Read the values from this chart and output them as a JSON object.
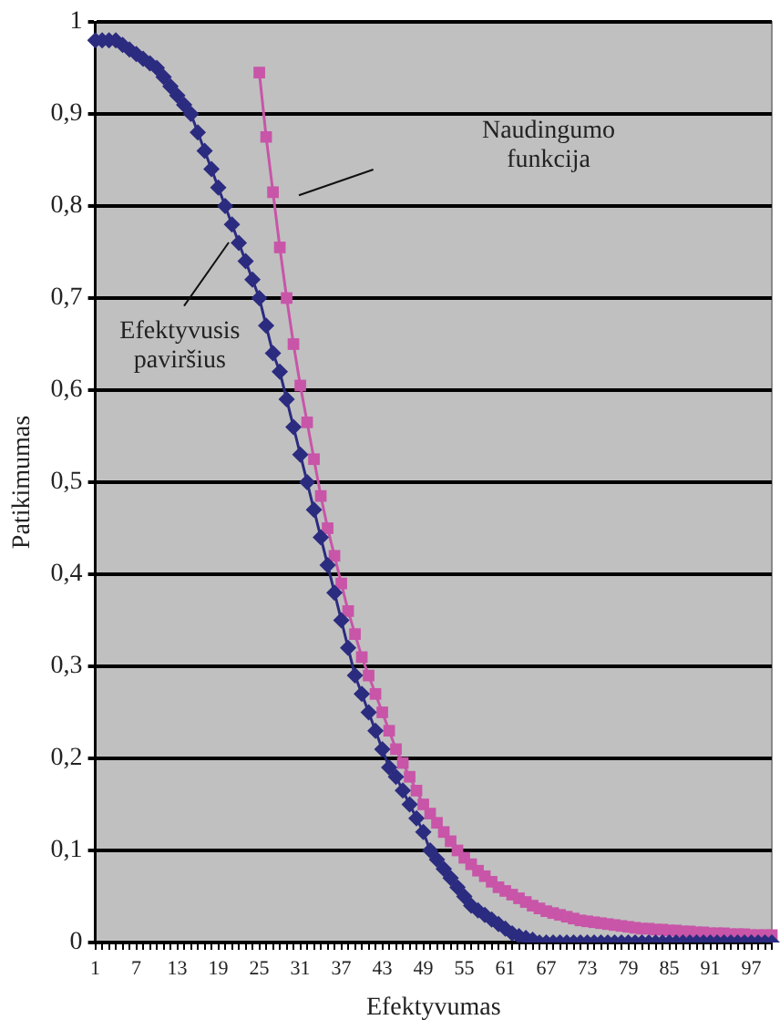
{
  "chart_data": {
    "type": "line",
    "xlabel": "Efektyvumas",
    "ylabel": "Patikimumas",
    "categories": [
      "1",
      null,
      null,
      null,
      null,
      null,
      "7",
      null,
      null,
      null,
      null,
      null,
      "13",
      null,
      null,
      null,
      null,
      null,
      "19",
      null,
      null,
      null,
      null,
      null,
      "25",
      null,
      null,
      null,
      null,
      null,
      "31",
      null,
      null,
      null,
      null,
      null,
      "37",
      null,
      null,
      null,
      null,
      null,
      "43",
      null,
      null,
      null,
      null,
      null,
      "49",
      null,
      null,
      null,
      null,
      null,
      "55",
      null,
      null,
      null,
      null,
      null,
      "61",
      null,
      null,
      null,
      null,
      null,
      "67",
      null,
      null,
      null,
      null,
      null,
      "73",
      null,
      null,
      null,
      null,
      null,
      "79",
      null,
      null,
      null,
      null,
      null,
      "85",
      null,
      null,
      null,
      null,
      null,
      "91",
      null,
      null,
      null,
      null,
      null,
      "97",
      null,
      null,
      null
    ],
    "series": [
      {
        "color": "#2b2b80",
        "marker": "diamond",
        "values": [
          0.98,
          0.98,
          0.98,
          0.98,
          0.975,
          0.97,
          0.965,
          0.96,
          0.955,
          0.95,
          0.94,
          0.93,
          0.92,
          0.91,
          0.9,
          0.88,
          0.86,
          0.84,
          0.82,
          0.8,
          0.78,
          0.76,
          0.74,
          0.72,
          0.7,
          0.67,
          0.64,
          0.62,
          0.59,
          0.56,
          0.53,
          0.5,
          0.47,
          0.44,
          0.41,
          0.38,
          0.35,
          0.32,
          0.29,
          0.27,
          0.25,
          0.23,
          0.21,
          0.19,
          0.18,
          0.165,
          0.15,
          0.135,
          0.12,
          0.1,
          0.09,
          0.08,
          0.07,
          0.06,
          0.05,
          0.04,
          0.035,
          0.03,
          0.025,
          0.02,
          0.015,
          0.01,
          0.007,
          0.005,
          0.003,
          0,
          0,
          0,
          0,
          0,
          0,
          0,
          0,
          0,
          0,
          0,
          0,
          0,
          0,
          0,
          0,
          0,
          0,
          0,
          0,
          0,
          0,
          0,
          0,
          0,
          0,
          0,
          0,
          0,
          0,
          0,
          0,
          0,
          0,
          0
        ]
      },
      {
        "color": "#c855a8",
        "marker": "square",
        "values": [
          null,
          null,
          null,
          null,
          null,
          null,
          null,
          null,
          null,
          null,
          null,
          null,
          null,
          null,
          null,
          null,
          null,
          null,
          null,
          null,
          null,
          null,
          null,
          null,
          0.945,
          0.875,
          0.815,
          0.755,
          0.7,
          0.65,
          0.605,
          0.565,
          0.525,
          0.485,
          0.45,
          0.42,
          0.39,
          0.36,
          0.335,
          0.31,
          0.29,
          0.27,
          0.25,
          0.23,
          0.21,
          0.195,
          0.18,
          0.165,
          0.15,
          0.14,
          0.13,
          0.12,
          0.11,
          0.1,
          0.092,
          0.085,
          0.078,
          0.072,
          0.066,
          0.06,
          0.056,
          0.052,
          0.048,
          0.044,
          0.04,
          0.037,
          0.034,
          0.032,
          0.03,
          0.028,
          0.026,
          0.024,
          0.023,
          0.022,
          0.021,
          0.02,
          0.019,
          0.018,
          0.017,
          0.016,
          0.015,
          0.015,
          0.014,
          0.014,
          0.013,
          0.013,
          0.012,
          0.012,
          0.011,
          0.011,
          0.01,
          0.01,
          0.01,
          0.009,
          0.009,
          0.009,
          0.008,
          0.008,
          0.008,
          0.008
        ]
      }
    ],
    "ylim": [
      0,
      1
    ],
    "yticks": [
      0,
      {
        "value": 0.1,
        "label": "0,1"
      },
      {
        "value": 0.2,
        "label": "0,2"
      },
      {
        "value": 0.3,
        "label": "0,3"
      },
      {
        "value": 0.4,
        "label": "0,4"
      },
      {
        "value": 0.5,
        "label": "0,5"
      },
      {
        "value": 0.6,
        "label": "0,6"
      },
      {
        "value": 0.7,
        "label": "0,7"
      },
      {
        "value": 0.8,
        "label": "0,8"
      },
      {
        "value": 0.9,
        "label": "0,9"
      },
      1
    ],
    "grid": "y",
    "legend": false,
    "line_style": "solid",
    "annotations": [
      "Naudingumo funkcija",
      "Efektyvusis paviršius"
    ]
  }
}
